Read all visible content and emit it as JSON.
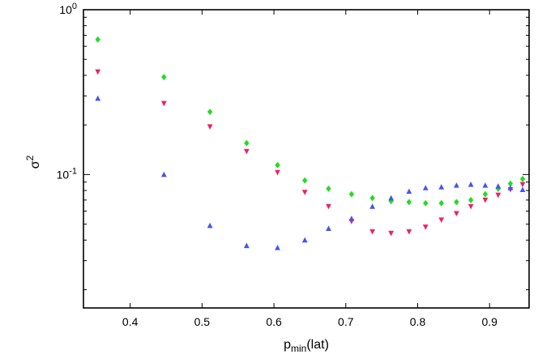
{
  "chart_data": {
    "type": "scatter",
    "xlabel": "p",
    "xlabel_sub": "min",
    "xlabel_suffix": "(lat)",
    "ylabel": "σ",
    "ylabel_sup": "2",
    "xlim": [
      0.335,
      0.955
    ],
    "ylim": [
      0.0155,
      1.0
    ],
    "yscale": "log",
    "grid": false,
    "x_ticks": [
      0.4,
      0.5,
      0.6,
      0.7,
      0.8,
      0.9
    ],
    "x_tick_labels": [
      "0.4",
      "0.5",
      "0.6",
      "0.7",
      "0.8",
      "0.9"
    ],
    "y_ticks": [
      1.0,
      0.1
    ],
    "y_tick_labels": [
      {
        "base": "10",
        "exp": "0"
      },
      {
        "base": "10",
        "exp": "-1"
      }
    ],
    "x": [
      0.355,
      0.447,
      0.511,
      0.562,
      0.605,
      0.643,
      0.676,
      0.708,
      0.737,
      0.763,
      0.788,
      0.811,
      0.833,
      0.854,
      0.874,
      0.894,
      0.912,
      0.929,
      0.946
    ],
    "series": [
      {
        "marker": "diamond",
        "color": "#22dd22",
        "values": [
          0.66,
          0.39,
          0.24,
          0.155,
          0.114,
          0.092,
          0.082,
          0.076,
          0.072,
          0.069,
          0.068,
          0.067,
          0.067,
          0.068,
          0.07,
          0.076,
          0.082,
          0.088,
          0.094
        ]
      },
      {
        "marker": "triangle-down",
        "color": "#ee2266",
        "values": [
          0.42,
          0.27,
          0.195,
          0.138,
          0.103,
          0.078,
          0.064,
          0.052,
          0.045,
          0.044,
          0.045,
          0.048,
          0.053,
          0.058,
          0.064,
          0.07,
          0.075,
          0.081,
          0.087
        ]
      },
      {
        "marker": "triangle-up",
        "color": "#4455ee",
        "values": [
          0.29,
          0.1,
          0.049,
          0.037,
          0.036,
          0.04,
          0.047,
          0.054,
          0.064,
          0.072,
          0.079,
          0.083,
          0.084,
          0.086,
          0.087,
          0.086,
          0.085,
          0.083,
          0.081
        ]
      }
    ]
  }
}
